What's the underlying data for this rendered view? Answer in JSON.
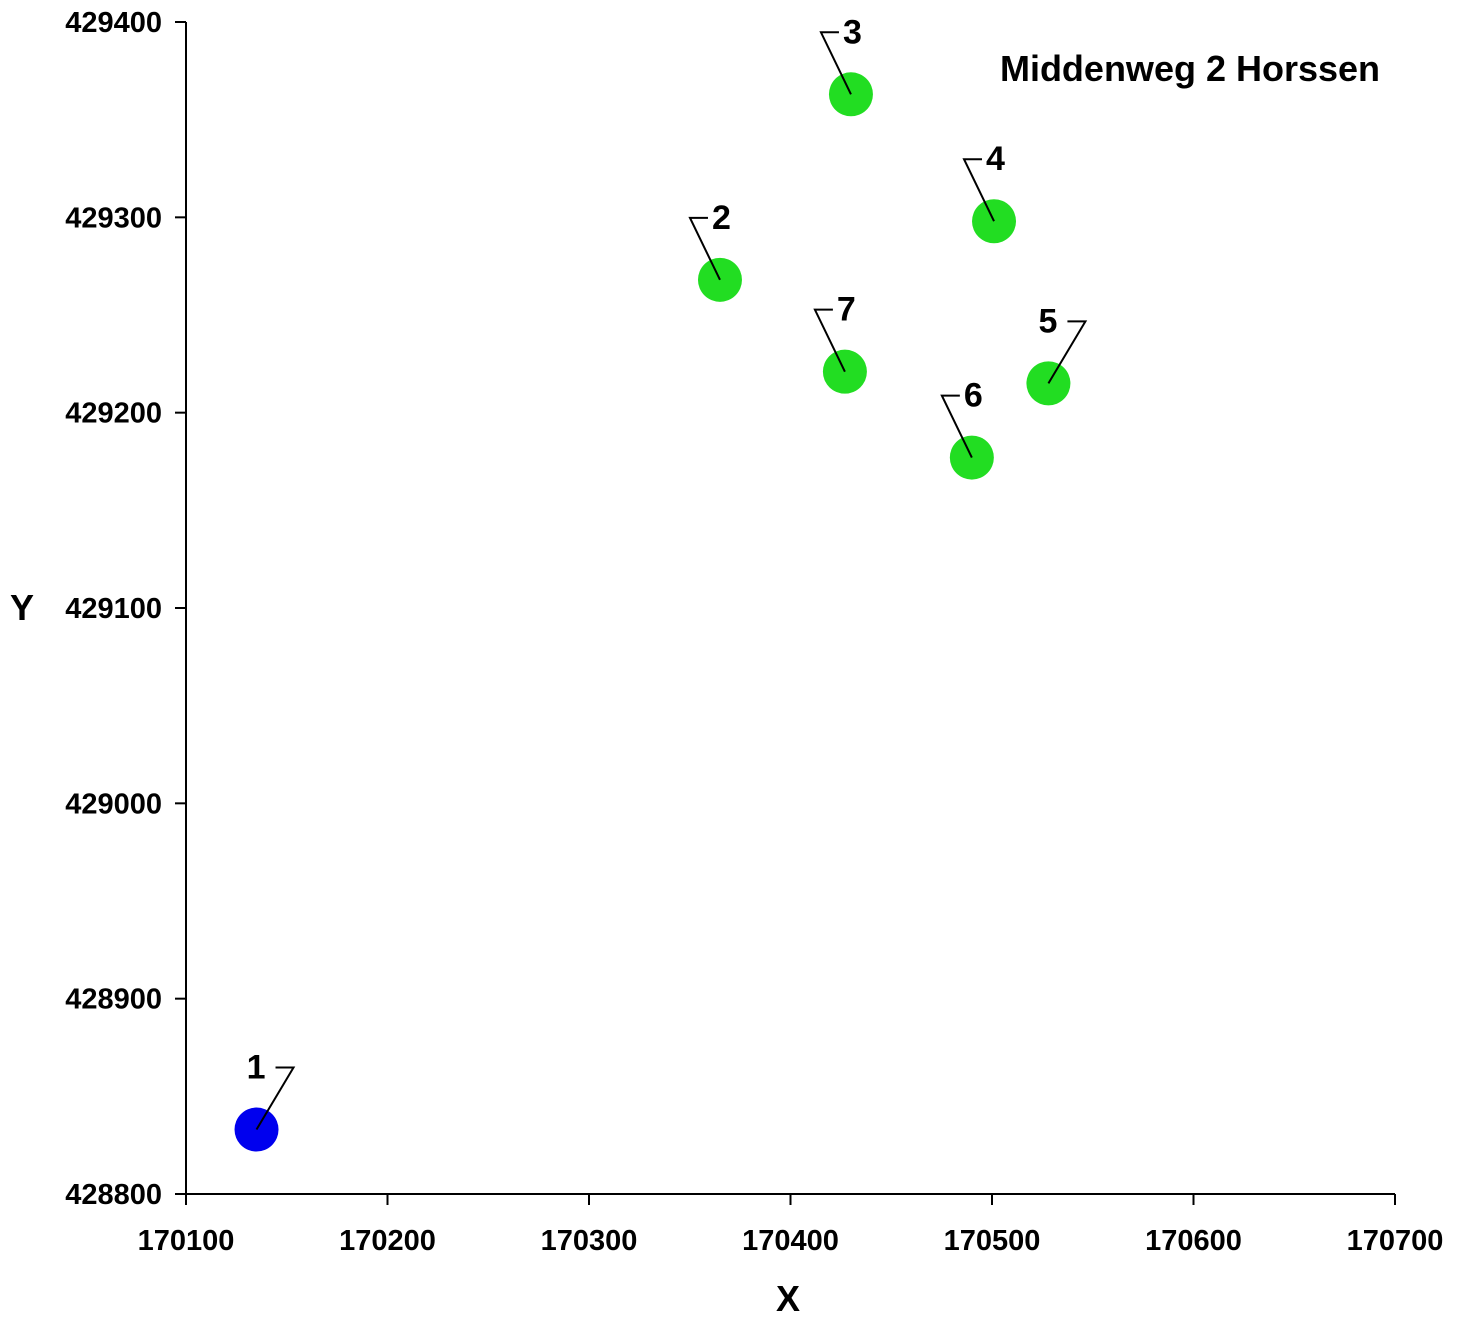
{
  "chart_data": {
    "type": "scatter",
    "title": "Middenweg 2 Horssen",
    "xlabel": "X",
    "ylabel": "Y",
    "xlim": [
      170100,
      170700
    ],
    "ylim": [
      428800,
      429400
    ],
    "x_ticks": [
      "170100",
      "170200",
      "170300",
      "170400",
      "170500",
      "170600",
      "170700"
    ],
    "y_ticks": [
      "428800",
      "428900",
      "429000",
      "429100",
      "429200",
      "429300",
      "429400"
    ],
    "grid": false,
    "legend": "none",
    "points": [
      {
        "label": "1",
        "x": 170135,
        "y": 428833,
        "color": "#0000ee",
        "label_side": "right"
      },
      {
        "label": "2",
        "x": 170365,
        "y": 429268,
        "color": "#22dd22",
        "label_side": "left"
      },
      {
        "label": "3",
        "x": 170430,
        "y": 429363,
        "color": "#22dd22",
        "label_side": "left"
      },
      {
        "label": "4",
        "x": 170501,
        "y": 429298,
        "color": "#22dd22",
        "label_side": "left"
      },
      {
        "label": "5",
        "x": 170528,
        "y": 429215,
        "color": "#22dd22",
        "label_side": "right"
      },
      {
        "label": "6",
        "x": 170490,
        "y": 429177,
        "color": "#22dd22",
        "label_side": "left"
      },
      {
        "label": "7",
        "x": 170427,
        "y": 429221,
        "color": "#22dd22",
        "label_side": "left"
      }
    ]
  }
}
